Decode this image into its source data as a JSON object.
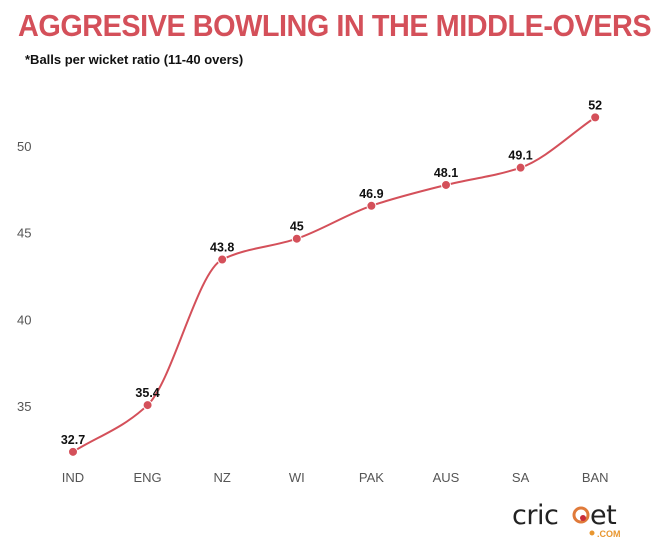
{
  "chart_data": {
    "type": "line",
    "title": "AGGRESIVE BOWLING IN THE MIDDLE-OVERS",
    "subtitle": "*Balls per wicket ratio (11-40 overs)",
    "categories": [
      "IND",
      "ENG",
      "NZ",
      "WI",
      "PAK",
      "AUS",
      "SA",
      "BAN"
    ],
    "values": [
      32.7,
      35.4,
      43.8,
      45,
      46.9,
      48.1,
      49.1,
      52
    ],
    "data_labels": [
      "32.7",
      "35.4",
      "43.8",
      "45",
      "46.9",
      "48.1",
      "49.1",
      "52"
    ],
    "yticks": [
      35,
      40,
      45,
      50
    ],
    "ylim": [
      32,
      54
    ],
    "grid": false,
    "line_color": "#d4505a",
    "smooth": true
  },
  "logo": {
    "text": "cricket",
    "suffix": ".COM"
  }
}
